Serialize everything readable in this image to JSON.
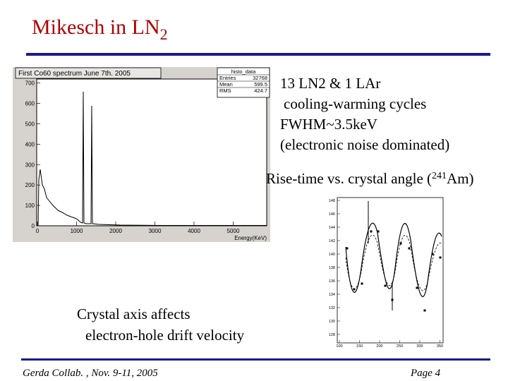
{
  "header": {
    "title": "Mikesch in LN",
    "title_sub": "2"
  },
  "notes": [
    "13 LN2 & 1 LAr",
    "cooling-warming cycles",
    "FWHM~3.5keV",
    "(electronic noise dominated)"
  ],
  "risetime_heading": {
    "text": "Rise-time vs. crystal angle (",
    "sup": "241",
    "tail": "Am)"
  },
  "histogram": {
    "title": "First Co60 spectrum June 7th. 2005",
    "stats": {
      "name": "histo_data",
      "rows": [
        [
          "Entries",
          "32768"
        ],
        [
          "Mean",
          "599.5"
        ],
        [
          "RMS",
          "424.7"
        ]
      ]
    },
    "yticks": [
      "0",
      "100",
      "200",
      "300",
      "400",
      "500",
      "600",
      "700"
    ],
    "xticks": [
      "0",
      "1000",
      "2000",
      "3000",
      "4000",
      "5000"
    ],
    "xlabel": "Energy(KeV)"
  },
  "risetime_plot": {
    "yticks": [
      "148",
      "146",
      "144",
      "142",
      "140",
      "138",
      "136",
      "134",
      "132",
      "130",
      "128"
    ],
    "xticks": [
      "100",
      "150",
      "200",
      "250",
      "300",
      "350"
    ]
  },
  "caption": [
    "Crystal axis affects",
    "electron-hole drift velocity"
  ],
  "footer": {
    "left": "Gerda Collab. , Nov. 9-11, 2005",
    "right": "Page 4"
  }
}
